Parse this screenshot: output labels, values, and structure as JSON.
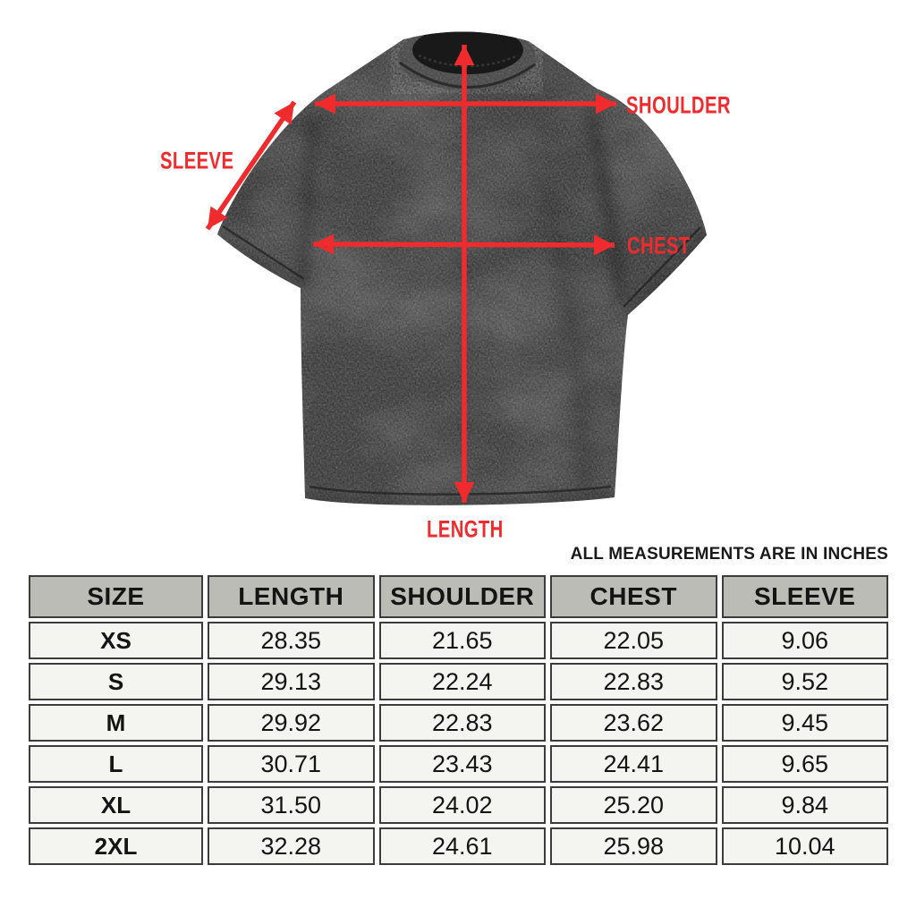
{
  "theme": {
    "accent_color": "#f02b2e",
    "shirt_color": "#3a3a3a",
    "header_bg": "#bcbcb7",
    "cell_bg": "#f4f4f1"
  },
  "diagram": {
    "labels": {
      "shoulder": "SHOULDER",
      "sleeve": "SLEEVE",
      "chest": "CHEST",
      "length": "LENGTH"
    },
    "note": "ALL MEASUREMENTS ARE IN INCHES"
  },
  "size_chart": {
    "columns": [
      "SIZE",
      "LENGTH",
      "SHOULDER",
      "CHEST",
      "SLEEVE"
    ],
    "rows": [
      [
        "XS",
        "28.35",
        "21.65",
        "22.05",
        "9.06"
      ],
      [
        "S",
        "29.13",
        "22.24",
        "22.83",
        "9.52"
      ],
      [
        "M",
        "29.92",
        "22.83",
        "23.62",
        "9.45"
      ],
      [
        "L",
        "30.71",
        "23.43",
        "24.41",
        "9.65"
      ],
      [
        "XL",
        "31.50",
        "24.02",
        "25.20",
        "9.84"
      ],
      [
        "2XL",
        "32.28",
        "24.61",
        "25.98",
        "10.04"
      ]
    ]
  },
  "chart_data": {
    "type": "table",
    "title": "T-shirt size chart (inches)",
    "columns": [
      "SIZE",
      "LENGTH",
      "SHOULDER",
      "CHEST",
      "SLEEVE"
    ],
    "rows": [
      {
        "size": "XS",
        "length": 28.35,
        "shoulder": 21.65,
        "chest": 22.05,
        "sleeve": 9.06
      },
      {
        "size": "S",
        "length": 29.13,
        "shoulder": 22.24,
        "chest": 22.83,
        "sleeve": 9.52
      },
      {
        "size": "M",
        "length": 29.92,
        "shoulder": 22.83,
        "chest": 23.62,
        "sleeve": 9.45
      },
      {
        "size": "L",
        "length": 30.71,
        "shoulder": 23.43,
        "chest": 24.41,
        "sleeve": 9.65
      },
      {
        "size": "XL",
        "length": 31.5,
        "shoulder": 24.02,
        "chest": 25.2,
        "sleeve": 9.84
      },
      {
        "size": "2XL",
        "length": 32.28,
        "shoulder": 24.61,
        "chest": 25.98,
        "sleeve": 10.04
      }
    ]
  }
}
